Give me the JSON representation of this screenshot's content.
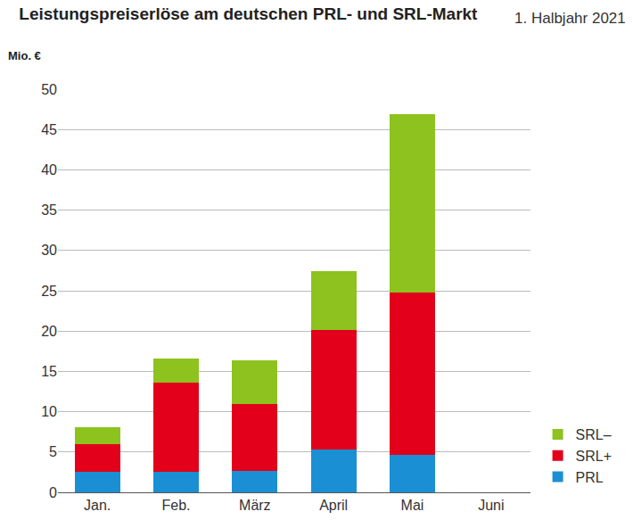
{
  "chart_data": {
    "type": "bar",
    "title": "Leistungspreiserlöse am deutschen PRL- und SRL-Markt",
    "subtitle": "1. Halbjahr 2021",
    "y_label": "Mio. €",
    "categories": [
      "Jan.",
      "Feb.",
      "März",
      "April",
      "Mai",
      "Juni"
    ],
    "series": [
      {
        "name": "PRL",
        "color": "#1a8fd4",
        "values": [
          2.5,
          2.5,
          2.7,
          5.3,
          4.6,
          null
        ]
      },
      {
        "name": "SRL+",
        "color": "#e2001a",
        "values": [
          3.5,
          11.1,
          8.3,
          14.8,
          20.2,
          null
        ]
      },
      {
        "name": "SRL–",
        "color": "#8dc21f",
        "values": [
          2.1,
          3.0,
          5.4,
          7.3,
          22.1,
          null
        ]
      }
    ],
    "stacked": true,
    "ylim": [
      0,
      50
    ],
    "yticks": [
      0,
      5,
      10,
      15,
      20,
      25,
      30,
      35,
      40,
      45,
      50
    ],
    "grid": true,
    "legend": "lower right"
  }
}
